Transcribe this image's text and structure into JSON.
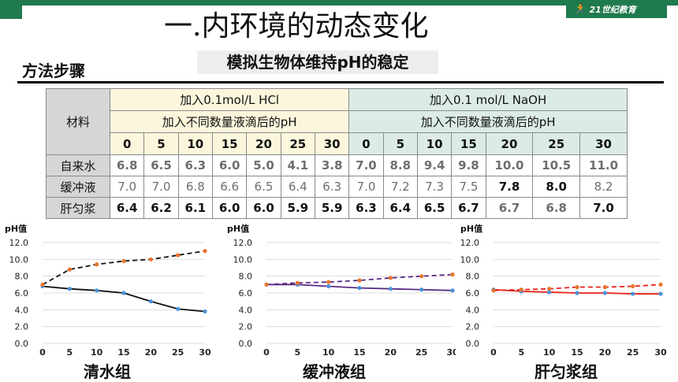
{
  "header": {
    "logo_text": "21世纪教育"
  },
  "title": "一.内环境的动态变化",
  "section_label": "方法步骤",
  "subtitle": "模拟生物体维持pH的稳定",
  "table": {
    "material_header": "材料",
    "hcl_header": "加入0.1mol/L HCl",
    "naoh_header": "加入0.1 mol/L NaOH",
    "drops_header_hcl": "加入不同数量液滴后的pH",
    "drops_header_naoh": "加入不同数量液滴后的pH",
    "hcl_drops": [
      "0",
      "5",
      "10",
      "15",
      "20",
      "25",
      "30"
    ],
    "naoh_drops": [
      "0",
      "5",
      "10",
      "15",
      "20",
      "25",
      "30"
    ],
    "rows": [
      {
        "label": "自来水",
        "hcl": [
          "6.8",
          "6.5",
          "6.3",
          "6.0",
          "5.0",
          "4.1",
          "3.8"
        ],
        "naoh": [
          "7.0",
          "8.8",
          "9.4",
          "9.8",
          "10.0",
          "10.5",
          "11.0"
        ]
      },
      {
        "label": "缓冲液",
        "hcl": [
          "7.0",
          "7.0",
          "6.8",
          "6.6",
          "6.5",
          "6.4",
          "6.3"
        ],
        "naoh": [
          "7.0",
          "7.2",
          "7.3",
          "7.5",
          "7.8",
          "8.0",
          "8.2"
        ]
      },
      {
        "label": "肝匀浆",
        "hcl": [
          "6.4",
          "6.2",
          "6.1",
          "6.0",
          "6.0",
          "5.9",
          "5.9"
        ],
        "naoh": [
          "6.3",
          "6.4",
          "6.5",
          "6.7",
          "6.7",
          "6.8",
          "7.0"
        ]
      }
    ]
  },
  "colors": {
    "tap_hcl": "#111111",
    "tap_naoh": "#111111",
    "buffer": "#5b2a86",
    "liver": "#e8231b",
    "point_blue": "#4a90d9",
    "point_orange": "#e8742a"
  },
  "chart_data": [
    {
      "type": "line",
      "title": "清水组",
      "ylabel": "pH值",
      "ylim": [
        0,
        12
      ],
      "x": [
        0,
        5,
        10,
        15,
        20,
        25,
        30
      ],
      "y_ticks": [
        "0.0",
        "2.0",
        "4.0",
        "6.0",
        "8.0",
        "10.0",
        "12.0"
      ],
      "series": [
        {
          "values": [
            6.8,
            6.5,
            6.3,
            6.0,
            5.0,
            4.1,
            3.8
          ],
          "style": "solid"
        },
        {
          "values": [
            7.0,
            8.8,
            9.4,
            9.8,
            10.0,
            10.5,
            11.0
          ],
          "style": "dashed"
        }
      ]
    },
    {
      "type": "line",
      "title": "缓冲液组",
      "ylabel": "pH值",
      "ylim": [
        0,
        12
      ],
      "x": [
        0,
        5,
        10,
        15,
        20,
        25,
        30
      ],
      "y_ticks": [
        "0.0",
        "2.0",
        "4.0",
        "6.0",
        "8.0",
        "10.0",
        "12.0"
      ],
      "series": [
        {
          "values": [
            7.0,
            7.0,
            6.8,
            6.6,
            6.5,
            6.4,
            6.3
          ],
          "style": "solid"
        },
        {
          "values": [
            7.0,
            7.2,
            7.3,
            7.5,
            7.8,
            8.0,
            8.2
          ],
          "style": "dashed"
        }
      ]
    },
    {
      "type": "line",
      "title": "肝匀浆组",
      "ylabel": "pH值",
      "ylim": [
        0,
        12
      ],
      "x": [
        0,
        5,
        10,
        15,
        20,
        25,
        30
      ],
      "y_ticks": [
        "0.0",
        "2.0",
        "4.0",
        "6.0",
        "8.0",
        "10.0",
        "12.0"
      ],
      "series": [
        {
          "values": [
            6.4,
            6.2,
            6.1,
            6.0,
            6.0,
            5.9,
            5.9
          ],
          "style": "solid"
        },
        {
          "values": [
            6.3,
            6.4,
            6.5,
            6.7,
            6.7,
            6.8,
            7.0
          ],
          "style": "dashed"
        }
      ]
    }
  ]
}
